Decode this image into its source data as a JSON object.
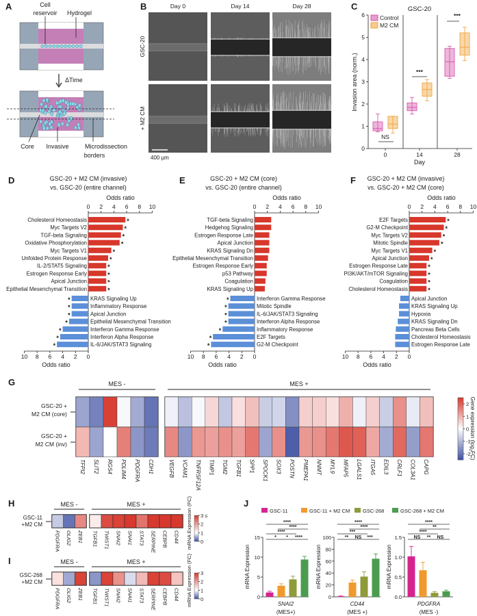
{
  "panel_labels": [
    "A",
    "B",
    "C",
    "D",
    "E",
    "F",
    "G",
    "H",
    "I",
    "J"
  ],
  "panel_a": {
    "cell_reservoir_lines": [
      "Cell",
      "reservoir"
    ],
    "hydrogel": "Hydrogel",
    "delta_time": "ΔTime",
    "core": "Core",
    "invasive": "Invasive",
    "borders_lines": [
      "Microdissection",
      "borders"
    ],
    "colors": {
      "chip": "#97a6b6",
      "hydrogel": "#c47fb7",
      "channel": "#e2e2e2",
      "cell": "#8fd6ea"
    }
  },
  "panel_b": {
    "days": [
      "Day 0",
      "Day 14",
      "Day 28"
    ],
    "rows": [
      "GSC-20",
      "+ M2 CM"
    ],
    "scale_bar": "400 µm"
  },
  "chart_data": [
    {
      "type": "box",
      "title": "GSC-20",
      "xlabel": "Day",
      "ylabel": "Invasion area (norm.)",
      "categories": [
        "0",
        "14",
        "28"
      ],
      "ylim": [
        0,
        6
      ],
      "yticks": [
        0,
        1,
        2,
        3,
        4,
        5,
        6
      ],
      "legend_position": "top-left",
      "series": [
        {
          "name": "Control",
          "color": "#d65aac",
          "boxes": [
            {
              "min": 0.75,
              "q1": 0.8,
              "median": 0.9,
              "q3": 1.2,
              "max": 1.55
            },
            {
              "min": 1.55,
              "q1": 1.7,
              "median": 1.85,
              "q3": 2.05,
              "max": 2.3
            },
            {
              "min": 3.15,
              "q1": 3.25,
              "median": 3.9,
              "q3": 4.5,
              "max": 4.6
            }
          ]
        },
        {
          "name": "M2 CM",
          "color": "#f0a640",
          "boxes": [
            {
              "min": 0.7,
              "q1": 0.9,
              "median": 1.1,
              "q3": 1.45,
              "max": 1.45
            },
            {
              "min": 2.15,
              "q1": 2.35,
              "median": 2.65,
              "q3": 2.95,
              "max": 3.1
            },
            {
              "min": 3.95,
              "q1": 4.2,
              "median": 4.55,
              "q3": 5.2,
              "max": 5.45
            }
          ]
        }
      ],
      "significance": [
        "NS",
        "***",
        "***"
      ]
    },
    {
      "type": "bar",
      "orientation": "horizontal",
      "title_lines": [
        "GSC-20 + M2 CM (invasive)",
        "vs. GSC-20 (entire channel)"
      ],
      "xlabel": "Odds ratio",
      "xlim": [
        0,
        10
      ],
      "xticks": [
        0,
        2,
        4,
        6,
        8,
        10
      ],
      "significance_marker": "*",
      "colors": {
        "up": "#d8372c",
        "down": "#5b8fd8"
      },
      "up": [
        {
          "term": "Cholesterol Homeostasis",
          "value": 5.8,
          "sig": true
        },
        {
          "term": "Myc Targets V2",
          "value": 5.4,
          "sig": true
        },
        {
          "term": "TGF-beta Signaling",
          "value": 5.1,
          "sig": true
        },
        {
          "term": "Oxidative Phosphorylation",
          "value": 4.9,
          "sig": true
        },
        {
          "term": "Myc Targets V1",
          "value": 3.6,
          "sig": true
        },
        {
          "term": "Unfolded Protein Response",
          "value": 3.1,
          "sig": true
        },
        {
          "term": "IL-2/STAT5 Signaling",
          "value": 2.8,
          "sig": true
        },
        {
          "term": "Estrogen Response Early",
          "value": 2.8,
          "sig": true
        },
        {
          "term": "Apical Junction",
          "value": 2.8,
          "sig": true
        },
        {
          "term": "Epithelial Mesenchymal Transition",
          "value": 2.8,
          "sig": true
        }
      ],
      "down": [
        {
          "term": "KRAS Signaling Up",
          "value": 2.6,
          "sig": true
        },
        {
          "term": "Inflammatory Response",
          "value": 2.6,
          "sig": true
        },
        {
          "term": "Apical Junction",
          "value": 2.6,
          "sig": true
        },
        {
          "term": "Epithelial Mesenchymal Transition",
          "value": 3.0,
          "sig": true
        },
        {
          "term": "Interferon Gamma Response",
          "value": 4.0,
          "sig": true
        },
        {
          "term": "Interferon Alpha Response",
          "value": 4.4,
          "sig": true
        },
        {
          "term": "IL-6/JAK/STAT3 Signaling",
          "value": 4.9,
          "sig": true
        }
      ]
    },
    {
      "type": "bar",
      "orientation": "horizontal",
      "title_lines": [
        "GSC-20 + M2 CM (core)",
        "vs. GSC-20 (entire channel)"
      ],
      "xlabel": "Odds ratio",
      "xlim": [
        0,
        10
      ],
      "xticks": [
        0,
        2,
        4,
        6,
        8,
        10
      ],
      "significance_marker": "*",
      "colors": {
        "up": "#d8372c",
        "down": "#5b8fd8"
      },
      "up": [
        {
          "term": "TGF-beta Signaling",
          "value": 2.6,
          "sig": false
        },
        {
          "term": "Hedgehog Signaling",
          "value": 2.6,
          "sig": false
        },
        {
          "term": "Estrogen Response Late",
          "value": 2.3,
          "sig": false
        },
        {
          "term": "Apical Junction",
          "value": 2.3,
          "sig": false
        },
        {
          "term": "KRAS Signaling Dn",
          "value": 2.3,
          "sig": false
        },
        {
          "term": "Epithelial Mesenchymal Transition",
          "value": 2.1,
          "sig": false
        },
        {
          "term": "Estrogen Response Early",
          "value": 1.9,
          "sig": false
        },
        {
          "term": "p53 Pathway",
          "value": 1.9,
          "sig": false
        },
        {
          "term": "Coagulation",
          "value": 1.7,
          "sig": false
        },
        {
          "term": "KRAS Signaling Up",
          "value": 1.6,
          "sig": false
        }
      ],
      "down": [
        {
          "term": "Interferon Gamma Response",
          "value": 3.8,
          "sig": true
        },
        {
          "term": "Mitotic Spindle",
          "value": 4.1,
          "sig": true
        },
        {
          "term": "IL-6/JAK/STAT3 Signaling",
          "value": 4.1,
          "sig": true
        },
        {
          "term": "Interferon Alpha Response",
          "value": 4.1,
          "sig": true
        },
        {
          "term": "Inflammatory Response",
          "value": 5.0,
          "sig": true
        },
        {
          "term": "E2F Targets",
          "value": 6.5,
          "sig": true
        },
        {
          "term": "G2-M Checkpoint",
          "value": 6.8,
          "sig": true
        }
      ]
    },
    {
      "type": "bar",
      "orientation": "horizontal",
      "title_lines": [
        "GSC-20 + M2 CM (invasive)",
        "vs. GSC-20 + M2 CM (core)"
      ],
      "xlabel": "Odds ratio",
      "xlim": [
        0,
        10
      ],
      "xticks": [
        0,
        2,
        4,
        6,
        8,
        10
      ],
      "significance_marker": "*",
      "colors": {
        "up": "#d8372c",
        "down": "#5b8fd8"
      },
      "up": [
        {
          "term": "E2F Targets",
          "value": 5.7,
          "sig": true
        },
        {
          "term": "G2-M Checkpoint",
          "value": 5.4,
          "sig": true
        },
        {
          "term": "Myc Targets V2",
          "value": 5.0,
          "sig": true
        },
        {
          "term": "Mitotic Spindle",
          "value": 4.7,
          "sig": true
        },
        {
          "term": "Myc Targets V1",
          "value": 3.6,
          "sig": true
        },
        {
          "term": "Apical Junction",
          "value": 3.1,
          "sig": true
        },
        {
          "term": "Estrogen Response Late",
          "value": 2.7,
          "sig": true
        },
        {
          "term": "PI3K/AKT/mTOR Signaling",
          "value": 2.7,
          "sig": true
        },
        {
          "term": "Coagulation",
          "value": 2.7,
          "sig": true
        },
        {
          "term": "Cholesterol Homeostasis",
          "value": 2.7,
          "sig": true
        }
      ],
      "down": [
        {
          "term": "Apical Junction",
          "value": 1.4,
          "sig": false
        },
        {
          "term": "KRAS Signaling Up",
          "value": 1.6,
          "sig": false
        },
        {
          "term": "Hypoxia",
          "value": 1.6,
          "sig": false
        },
        {
          "term": "KRAS Signaling Dn",
          "value": 1.8,
          "sig": false
        },
        {
          "term": "Pancreas Beta Cells",
          "value": 2.1,
          "sig": false
        },
        {
          "term": "Cholesterol Homeostasis",
          "value": 2.2,
          "sig": false
        },
        {
          "term": "Estrogen Response Late",
          "value": 2.2,
          "sig": false
        }
      ]
    },
    {
      "type": "heatmap",
      "column_groups": [
        {
          "label": "MES -",
          "genes": [
            "TFPI2",
            "SLIT2",
            "RGS4",
            "PDLIM4",
            "PDGFRA",
            "CDH1"
          ]
        },
        {
          "label": "MES +",
          "genes": [
            "VEGFB",
            "VCAM1",
            "TNFRSF12A",
            "TIMP1",
            "TGM2",
            "TGFB1",
            "SPP1",
            "SPOCK1",
            "SOX3",
            "POSTN",
            "PMEPA1",
            "NNMT",
            "MYL9",
            "MFAP5",
            "LGALS1",
            "ITGA5",
            "EDIL3",
            "CRLF1",
            "COL3A1",
            "CAPG"
          ]
        }
      ],
      "rows": [
        {
          "label_lines": [
            "GSC-20 +",
            "M2 CM (core)"
          ],
          "values": [
            -1.3,
            -1.8,
            2.4,
            -0.1,
            -1.2,
            -2.0,
            -0.2,
            -0.9,
            -0.1,
            0.5,
            -0.8,
            0.4,
            0.8,
            -0.7,
            -0.6,
            -1.6,
            0.6,
            0.6,
            0.4,
            1.0,
            -0.2,
            0.6,
            -0.7,
            1.4,
            -0.3,
            0.8
          ]
        },
        {
          "label_lines": [
            "GSC-20 +",
            "M2 CM (inv)"
          ],
          "values": [
            0.9,
            -1.3,
            0.0,
            1.6,
            -1.5,
            -1.9,
            1.5,
            -1.5,
            1.3,
            1.2,
            1.4,
            1.2,
            1.7,
            -1.3,
            1.4,
            -2.3,
            1.3,
            1.4,
            1.7,
            2.1,
            2.0,
            1.1,
            -1.2,
            1.9,
            -1.4,
            1.7
          ]
        }
      ],
      "colorbar": {
        "label_prefix": "Gene expression (log",
        "label_sub": "2",
        "label_suffix": "FC)",
        "range": [
          -2.5,
          2.5
        ],
        "ticks": [
          2,
          1,
          0,
          -1,
          -2
        ],
        "colors": {
          "low": "#3f51a3",
          "mid": "#ffffff",
          "high": "#d7392e"
        }
      }
    },
    {
      "type": "heatmap",
      "column_groups": [
        {
          "label": "MES -",
          "genes": [
            "PDGFRA",
            "OLIG2",
            "ZEB1"
          ]
        },
        {
          "label": "MES +",
          "genes": [
            "TGFB1",
            "TWIST1",
            "SNAI2",
            "SNAI1",
            "STAT3",
            "SERPINE",
            "CEBPB",
            "CD44"
          ]
        }
      ],
      "rows": [
        {
          "label_lines": [
            "GSC-11",
            "+M2 CM"
          ],
          "values": [
            0.7,
            0.2,
            2.2,
            1.2,
            2.8,
            2.9,
            3.0,
            2.4,
            3.0,
            3.0,
            3.0
          ]
        }
      ],
      "colorbar": {
        "label": "mRNA Expression (FC)",
        "range": [
          0,
          3
        ],
        "midpoint": 1,
        "tick_values": [
          3,
          2,
          1,
          0
        ],
        "tick_labels": [
          "3 ≤",
          "2",
          "1",
          "0"
        ]
      }
    },
    {
      "type": "heatmap",
      "column_groups": [
        {
          "label": "MES -",
          "genes": [
            "PDGFRA",
            "OLIG2",
            "ZEB1"
          ]
        },
        {
          "label": "MES +",
          "genes": [
            "TGFB1",
            "TWIST1",
            "SNAI2",
            "SNAI1",
            "STAT3",
            "SERPINE",
            "CEBPB",
            "CD44"
          ]
        }
      ],
      "rows": [
        {
          "label_lines": [
            "GSC-268",
            "+M2 CM"
          ],
          "values": [
            1.3,
            0.5,
            2.9,
            0.4,
            2.9,
            2.1,
            0.8,
            1.7,
            2.9,
            2.8,
            1.6
          ]
        }
      ],
      "colorbar": {
        "label": "mRNA Expression (FC)",
        "range": [
          0,
          3
        ],
        "midpoint": 1,
        "tick_values": [
          3,
          2,
          1,
          0
        ],
        "tick_labels": [
          "3",
          "2",
          "1",
          "0"
        ]
      }
    },
    {
      "type": "bar",
      "legend": [
        {
          "name": "GSC-11",
          "color": "#d6248f"
        },
        {
          "name": "GSC-11 + M2 CM",
          "color": "#f09a2e"
        },
        {
          "name": "GSC-268",
          "color": "#8f9a3a"
        },
        {
          "name": "GSC-268 + M2 CM",
          "color": "#4c9c4f"
        }
      ],
      "legend_position": "top",
      "subplots": [
        {
          "gene": "SNAI2",
          "group": "(MES+)",
          "ylabel": "mRNA Expression",
          "ylim": [
            0,
            15
          ],
          "yticks": [
            "0",
            "5",
            "10",
            "15"
          ],
          "ytick_values": [
            0,
            5,
            10,
            15
          ],
          "values": [
            1.1,
            2.8,
            4.4,
            9.4
          ],
          "errors": [
            0.3,
            0.5,
            0.8,
            0.8
          ],
          "comparison_rows": [
            [
              {
                "a": 0,
                "b": 3,
                "label": "****"
              }
            ],
            [
              {
                "a": 1,
                "b": 3,
                "label": "****"
              }
            ],
            [
              {
                "a": 0,
                "b": 2,
                "label": "****"
              }
            ],
            [
              {
                "a": 0,
                "b": 1,
                "label": "*"
              },
              {
                "a": 1,
                "b": 2,
                "label": "*"
              },
              {
                "a": 2,
                "b": 3,
                "label": "****"
              }
            ]
          ]
        },
        {
          "gene": "CD44",
          "group": "(MES +)",
          "ylabel": "mRNA Expression",
          "ylim": [
            0,
            100
          ],
          "yticks": [
            "0",
            "20",
            "40",
            "60",
            "80",
            "100"
          ],
          "ytick_values": [
            0,
            20,
            40,
            60,
            80,
            100
          ],
          "values": [
            1,
            24,
            34,
            64
          ],
          "errors": [
            0.5,
            4,
            8,
            8
          ],
          "comparison_rows": [
            [
              {
                "a": 0,
                "b": 3,
                "label": "****"
              }
            ],
            [
              {
                "a": 1,
                "b": 3,
                "label": "****"
              }
            ],
            [
              {
                "a": 0,
                "b": 2,
                "label": "***"
              }
            ],
            [
              {
                "a": 0,
                "b": 1,
                "label": "**"
              },
              {
                "a": 1,
                "b": 2,
                "label": "NS"
              },
              {
                "a": 2,
                "b": 3,
                "label": "***"
              }
            ]
          ]
        },
        {
          "gene": "PDGFRA",
          "group": "(MES -)",
          "ylabel": "mRNA Expression",
          "ylim": [
            0,
            1.5
          ],
          "yticks": [
            "0.0",
            "0.5",
            "1.0",
            "1.5"
          ],
          "ytick_values": [
            0,
            0.5,
            1.0,
            1.5
          ],
          "values": [
            1.02,
            0.67,
            0.1,
            0.14
          ],
          "errors": [
            0.25,
            0.2,
            0.03,
            0.03
          ],
          "comparison_rows": [
            [
              {
                "a": 0,
                "b": 3,
                "label": "****"
              }
            ],
            [
              {
                "a": 1,
                "b": 3,
                "label": "**"
              }
            ],
            [
              {
                "a": 0,
                "b": 2,
                "label": "****"
              }
            ],
            [
              {
                "a": 0,
                "b": 1,
                "label": "NS"
              },
              {
                "a": 1,
                "b": 2,
                "label": "**"
              },
              {
                "a": 2,
                "b": 3,
                "label": "NS"
              }
            ]
          ]
        }
      ]
    }
  ]
}
